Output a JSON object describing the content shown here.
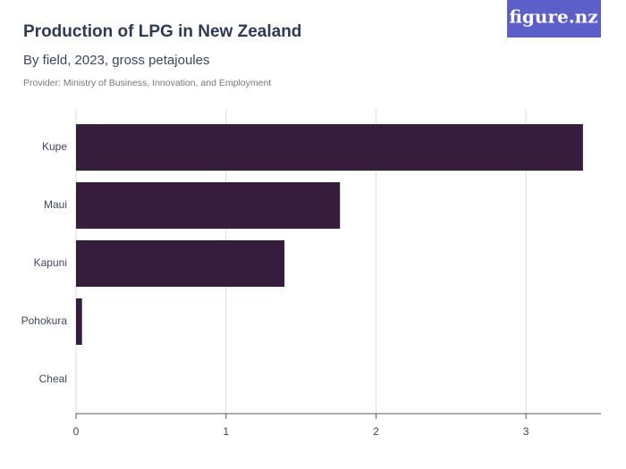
{
  "chart_data": {
    "type": "hbar",
    "title": "Production of LPG in New Zealand",
    "subtitle": "By field, 2023, gross petajoules",
    "provider": "Provider: Ministry of Business, Innovation, and Employment",
    "brand": "figure.nz",
    "categories": [
      "Kupe",
      "Maui",
      "Kapuni",
      "Pohokura",
      "Cheal"
    ],
    "values": [
      3.38,
      1.76,
      1.39,
      0.04,
      0
    ],
    "color": "#361d3b",
    "xlim": [
      0,
      3.5
    ],
    "xticks": [
      0,
      1,
      2,
      3
    ],
    "grid": true
  }
}
